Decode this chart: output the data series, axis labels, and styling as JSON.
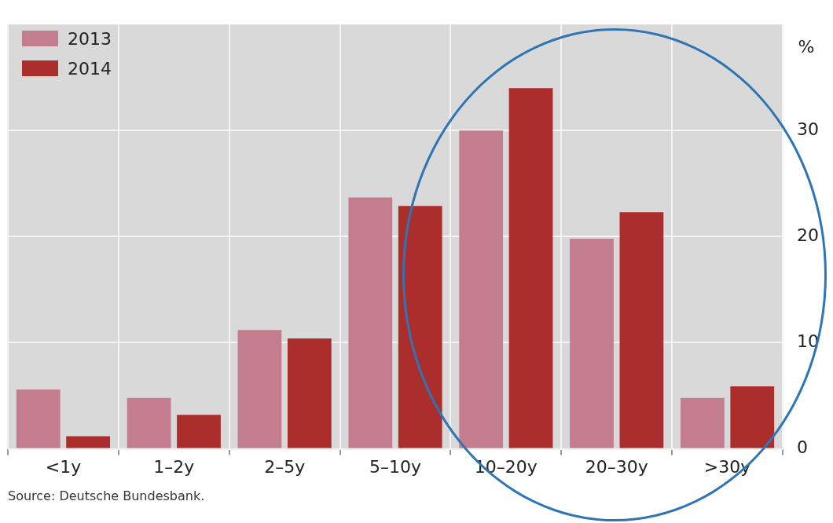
{
  "chart_data": {
    "type": "bar",
    "ylabel": "%",
    "categories": [
      "<1y",
      "1–2y",
      "2–5y",
      "5–10y",
      "10–20y",
      "20–30y",
      ">30y"
    ],
    "series": [
      {
        "name": "2013",
        "color": "#c47d8e",
        "values": [
          5.6,
          4.8,
          11.2,
          23.7,
          30.0,
          19.8,
          4.8
        ]
      },
      {
        "name": "2014",
        "color": "#ab2e2c",
        "values": [
          1.2,
          3.2,
          10.4,
          22.9,
          34.0,
          22.3,
          5.9
        ]
      }
    ],
    "ylim": [
      0,
      40
    ],
    "yticks": [
      0,
      10,
      20,
      30
    ],
    "grid": true,
    "legend": "top left",
    "annotations": [
      "Source: Deutsche Bundesbank."
    ]
  }
}
